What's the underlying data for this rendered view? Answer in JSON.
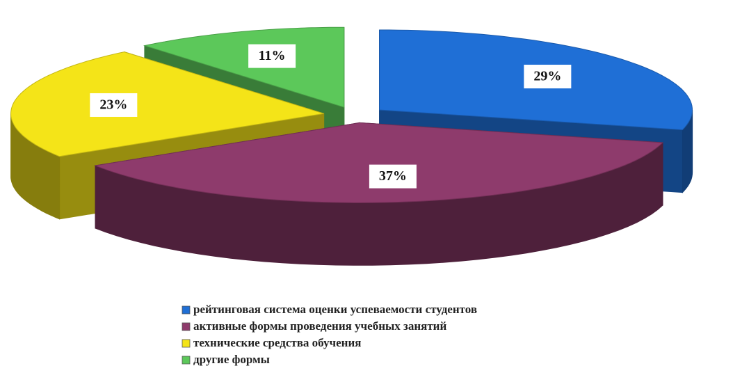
{
  "chart_data": {
    "type": "pie",
    "categories": [
      "рейтинговая система оценки успеваемости студентов",
      "активные формы проведения учебных занятий",
      "технические средства обучения",
      "другие формы"
    ],
    "values": [
      29,
      37,
      23,
      11
    ],
    "value_labels": [
      "29%",
      "37%",
      "23%",
      "11%"
    ],
    "colors": [
      "#1f6fd6",
      "#8e3b6c",
      "#f4e418",
      "#5cc85a"
    ],
    "legend": "bottom"
  }
}
